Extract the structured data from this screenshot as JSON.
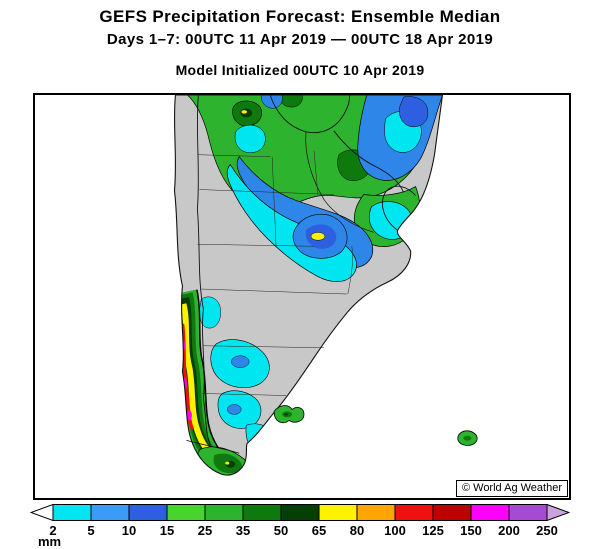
{
  "header": {
    "title": "GEFS Precipitation Forecast: Ensemble Median",
    "subtitle": "Days 1–7: 00UTC 11 Apr 2019 — 00UTC 18 Apr 2019",
    "model_line": "Model Initialized 00UTC 10 Apr 2019"
  },
  "map": {
    "watermark": "© World Ag Weather"
  },
  "legend": {
    "unit": "mm",
    "boundaries": [
      "2",
      "5",
      "10",
      "15",
      "25",
      "35",
      "50",
      "65",
      "80",
      "100",
      "125",
      "150",
      "200",
      "250"
    ],
    "scale_mm": [
      2,
      5,
      10,
      15,
      25,
      35,
      50,
      65,
      80,
      100,
      125,
      150,
      200,
      250
    ],
    "segment_colors": [
      "#00E6F0",
      "#3B9BF5",
      "#2D5FE0",
      "#49D32E",
      "#2EB32E",
      "#0E7A0E",
      "#063F06",
      "#FFF200",
      "#FFA500",
      "#F01010",
      "#BE0000",
      "#FF00FF",
      "#A44BD0"
    ],
    "cap_colors": [
      "#FFFFFF",
      "#CDA0E0"
    ]
  }
}
